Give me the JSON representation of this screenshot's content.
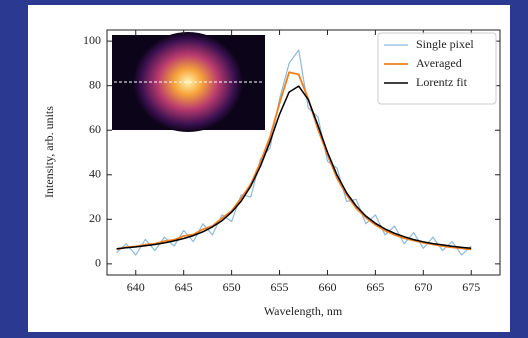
{
  "chart_data": {
    "type": "line",
    "xlabel": "Wavelength, nm",
    "ylabel": "Intensity, arb. units",
    "x": [
      638,
      639,
      640,
      641,
      642,
      643,
      644,
      645,
      646,
      647,
      648,
      649,
      650,
      651,
      652,
      653,
      654,
      655,
      656,
      657,
      658,
      659,
      660,
      661,
      662,
      663,
      664,
      665,
      666,
      667,
      668,
      669,
      670,
      671,
      672,
      673,
      674,
      675
    ],
    "series": [
      {
        "name": "Single pixel",
        "color": "#8fb9dc",
        "width": 1.2,
        "values": [
          5,
          9,
          4,
          11,
          6,
          12,
          8,
          15,
          10,
          18,
          13,
          22,
          19,
          31,
          30,
          47,
          52,
          74,
          90,
          96,
          70,
          66,
          46,
          43,
          28,
          29,
          18,
          22,
          13,
          17,
          9,
          14,
          7,
          12,
          6,
          10,
          4,
          8
        ]
      },
      {
        "name": "Averaged",
        "color": "#f07f1f",
        "width": 1.8,
        "values": [
          6.5,
          7.5,
          7.8,
          8.6,
          9.0,
          10.2,
          10.8,
          12.5,
          13.2,
          15.5,
          17.0,
          20.5,
          23.8,
          29.5,
          35.8,
          45.5,
          57.0,
          72.0,
          86.0,
          85.0,
          74.0,
          60.5,
          49.0,
          38.5,
          31.0,
          25.0,
          20.8,
          17.5,
          15.0,
          13.0,
          11.5,
          10.5,
          9.5,
          8.8,
          8.0,
          7.4,
          7.0,
          6.5
        ]
      },
      {
        "name": "Lorentz fit",
        "color": "#000000",
        "width": 1.5,
        "values": [
          6.8,
          7.2,
          7.6,
          8.1,
          8.7,
          9.4,
          10.3,
          11.4,
          12.7,
          14.4,
          16.6,
          19.4,
          23.2,
          28.2,
          34.9,
          43.8,
          54.8,
          67.1,
          77.1,
          79.8,
          73.7,
          62.2,
          50.1,
          39.9,
          31.9,
          26.0,
          21.5,
          18.2,
          15.7,
          13.7,
          12.2,
          10.9,
          9.9,
          9.1,
          8.5,
          7.9,
          7.4,
          7.0
        ]
      }
    ],
    "xlim": [
      637,
      678
    ],
    "ylim": [
      -5,
      105
    ],
    "xticks": [
      640,
      645,
      650,
      655,
      660,
      665,
      670,
      675
    ],
    "yticks": [
      0,
      20,
      40,
      60,
      80,
      100
    ],
    "grid": false,
    "legend": "upper right"
  }
}
